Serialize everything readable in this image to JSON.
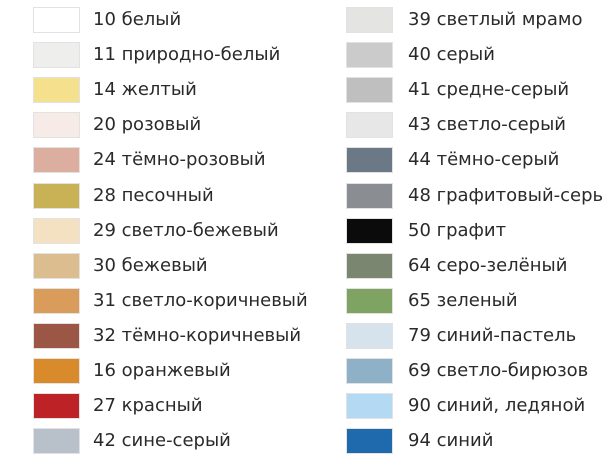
{
  "columns": [
    {
      "items": [
        {
          "label": "10 белый",
          "color": "#ffffff"
        },
        {
          "label": "11 природно-белый",
          "color": "#eeeeec"
        },
        {
          "label": "14 желтый",
          "color": "#f5e08e"
        },
        {
          "label": "20 розовый",
          "color": "#f7ebe8"
        },
        {
          "label": "24 тёмно-розовый",
          "color": "#dcaea0"
        },
        {
          "label": "28 песочный",
          "color": "#c8b255"
        },
        {
          "label": "29 светло-бежевый",
          "color": "#f3e1c1"
        },
        {
          "label": "30 бежевый",
          "color": "#dcbd8f"
        },
        {
          "label": "31 светло-коричневый",
          "color": "#d99c5a"
        },
        {
          "label": "32 тёмно-коричневый",
          "color": "#9c5646"
        },
        {
          "label": "16 оранжевый",
          "color": "#d98a2a"
        },
        {
          "label": "27 красный",
          "color": "#bd2226"
        },
        {
          "label": "42 сине-серый",
          "color": "#b8c1ca"
        }
      ]
    },
    {
      "items": [
        {
          "label": "39 светлый мрамо",
          "color": "#e4e4e2"
        },
        {
          "label": "40 серый",
          "color": "#cbcbcb"
        },
        {
          "label": "41 средне-серый",
          "color": "#bfbfc0"
        },
        {
          "label": "43 светло-серый",
          "color": "#e7e7e7"
        },
        {
          "label": "44 тёмно-серый",
          "color": "#6b7886"
        },
        {
          "label": "48 графитовый-серь",
          "color": "#8a8d92"
        },
        {
          "label": "50 графит",
          "color": "#0b0b0b"
        },
        {
          "label": "64 серо-зелёный",
          "color": "#7a8670"
        },
        {
          "label": "65 зеленый",
          "color": "#7fa363"
        },
        {
          "label": "79 синий-пастель",
          "color": "#d6e3ec"
        },
        {
          "label": "69 светло-бирюзов",
          "color": "#8eb1c8"
        },
        {
          "label": "90 синий, ледяной",
          "color": "#b4d9f3"
        },
        {
          "label": "94 синий",
          "color": "#1f69ad"
        }
      ]
    }
  ]
}
